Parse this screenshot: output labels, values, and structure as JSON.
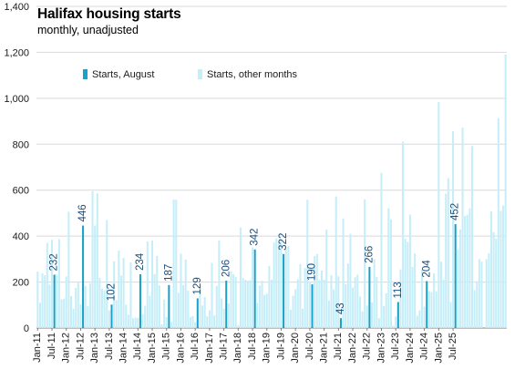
{
  "chart_data": {
    "type": "bar",
    "title": "Halifax housing starts",
    "subtitle": "monthly, unadjusted",
    "xlabel": "",
    "ylabel": "",
    "ylim": [
      0,
      1400
    ],
    "yticks": [
      0,
      200,
      400,
      600,
      800,
      1000,
      1200,
      1400
    ],
    "ytick_labels": [
      "0",
      "200",
      "400",
      "600",
      "800",
      "1,000",
      "1,200",
      "1,400"
    ],
    "start_month": "Jan-11",
    "x_tick_labels": [
      "Jan-11",
      "Jul-11",
      "Jan-12",
      "Jul-12",
      "Jan-13",
      "Jul-13",
      "Jan-14",
      "Jul-14",
      "Jan-15",
      "Jul-15",
      "Jan-16",
      "Jul-16",
      "Jan-17",
      "Jul-17",
      "Jan-18",
      "Jul-18",
      "Jan-19",
      "Jul-19",
      "Jan-20",
      "Jul-20",
      "Jan-21",
      "Jul-21",
      "Jan-22",
      "Jul-22",
      "Jan-23",
      "Jul-23",
      "Jan-24",
      "Jul-24",
      "Jan-25",
      "Jul-25"
    ],
    "legend": {
      "position": "top-left",
      "entries": [
        "Starts, August",
        "Starts, other months"
      ]
    },
    "colors": {
      "august": "#1ba1c9",
      "other": "#c6eef9",
      "label": "#1f4e79",
      "axis": "#7f7f7f",
      "grid": "#d9d9d9"
    },
    "series": [
      {
        "name": "Starts, other months",
        "values": [
          246,
          110,
          238,
          229,
          371,
          189,
          384,
          232,
          387,
          125,
          128,
          224,
          506,
          139,
          84,
          174,
          197,
          103,
          184,
          95,
          194,
          595,
          446,
          586,
          218,
          171,
          164,
          470,
          77,
          290,
          122,
          337,
          228,
          305,
          102,
          58,
          285,
          42,
          45,
          45,
          61,
          97,
          377,
          140,
          381,
          234,
          314,
          185,
          16,
          124,
          48,
          26,
          559,
          558,
          153,
          324,
          187,
          298,
          163,
          47,
          52,
          26,
          179,
          98,
          135,
          51,
          77,
          283,
          55,
          183,
          380,
          129,
          84,
          107,
          247,
          234,
          223,
          12,
          437,
          218,
          210,
          206,
          208,
          351,
          109,
          185,
          206,
          144,
          149,
          270,
          210,
          372,
          390,
          376,
          383,
          342,
          357,
          80,
          140,
          169,
          212,
          278,
          84,
          261,
          558,
          202,
          313,
          322,
          209,
          250,
          210,
          429,
          120,
          230,
          168,
          573,
          225,
          477,
          190,
          281,
          410,
          176,
          221,
          232,
          137,
          72,
          560,
          98,
          111,
          300,
          223,
          43,
          675,
          96,
          151,
          521,
          473,
          10,
          50,
          255,
          811,
          388,
          375,
          494,
          266,
          325,
          54,
          77,
          255,
          93,
          161,
          156,
          238,
          160,
          983,
          289,
          211,
          585,
          652,
          113,
          857,
          340,
          429,
          872,
          488,
          493,
          521,
          792,
          165,
          204,
          300,
          289,
          299,
          325,
          507,
          417,
          388,
          913,
          510,
          533,
          1190,
          452
        ]
      },
      {
        "name": "Starts, August",
        "month_index": 7,
        "values": [
          232,
          446,
          102,
          234,
          187,
          129,
          206,
          342,
          322,
          190,
          43,
          266,
          113,
          204,
          452
        ]
      }
    ],
    "data_labels": [
      "232",
      "446",
      "102",
      "234",
      "187",
      "129",
      "206",
      "342",
      "322",
      "190",
      "43",
      "266",
      "113",
      "204",
      "452"
    ]
  }
}
